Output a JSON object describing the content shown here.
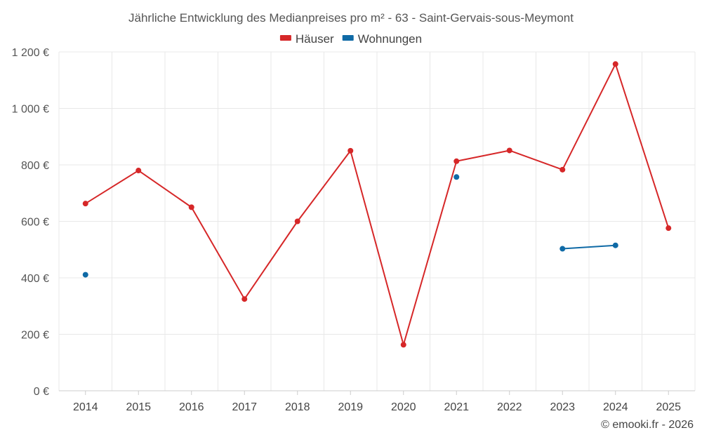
{
  "chart_data": {
    "type": "line",
    "title": "Jährliche Entwicklung des Medianpreises pro m² - 63 - Saint-Gervais-sous-Meymont",
    "x": [
      "2014",
      "2015",
      "2016",
      "2017",
      "2018",
      "2019",
      "2020",
      "2021",
      "2022",
      "2023",
      "2024",
      "2025"
    ],
    "ylim": [
      0,
      1200
    ],
    "yticks": [
      0,
      200,
      400,
      600,
      800,
      1000,
      1200
    ],
    "ytick_labels": [
      "0 €",
      "200 €",
      "400 €",
      "600 €",
      "800 €",
      "1 000 €",
      "1 200 €"
    ],
    "grid": true,
    "legend_position": "top-center",
    "series": [
      {
        "name": "Häuser",
        "color": "#d62728",
        "values": [
          663,
          780,
          650,
          325,
          600,
          850,
          163,
          813,
          851,
          783,
          1157,
          576
        ]
      },
      {
        "name": "Wohnungen",
        "color": "#0f6aa6",
        "values": [
          411,
          null,
          null,
          null,
          null,
          null,
          null,
          757,
          null,
          503,
          515,
          null
        ]
      }
    ]
  },
  "credit": "© emooki.fr - 2026"
}
